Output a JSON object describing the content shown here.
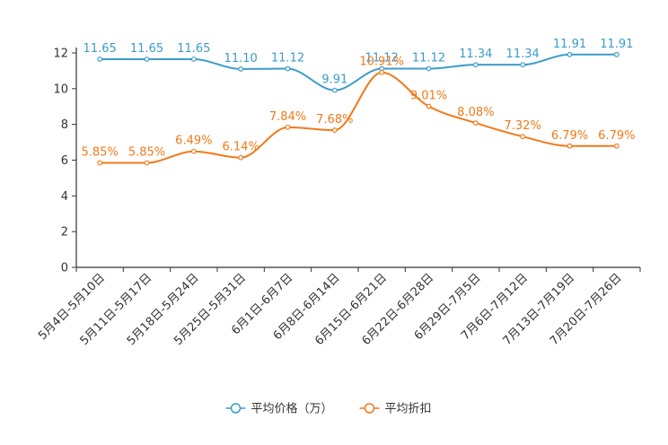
{
  "chart_data": {
    "type": "line",
    "title": "",
    "xlabel": "",
    "ylabel": "",
    "ylim": [
      0,
      12
    ],
    "yticks": [
      0,
      2,
      4,
      6,
      8,
      10,
      12
    ],
    "categories": [
      "5月4日-5月10日",
      "5月11日-5月17日",
      "5月18日-5月24日",
      "5月25日-5月31日",
      "6月1日-6月7日",
      "6月8日-6月14日",
      "6月15日-6月21日",
      "6月22日-6月28日",
      "6月29日-7月5日",
      "7月6日-7月12日",
      "7月13日-7月19日",
      "7月20日-7月26日"
    ],
    "series": [
      {
        "name": "平均价格（万）",
        "color": "#3b9ccb",
        "values": [
          11.65,
          11.65,
          11.65,
          11.1,
          11.12,
          9.91,
          11.12,
          11.12,
          11.34,
          11.34,
          11.91,
          11.91
        ],
        "labels": [
          "11.65",
          "11.65",
          "11.65",
          "11.10",
          "11.12",
          "9.91",
          "11.12",
          "11.12",
          "11.34",
          "11.34",
          "11.91",
          "11.91"
        ]
      },
      {
        "name": "平均折扣",
        "color": "#f07a1a",
        "values": [
          5.85,
          5.85,
          6.49,
          6.14,
          7.84,
          7.68,
          10.91,
          9.01,
          8.08,
          7.32,
          6.79,
          6.79
        ],
        "labels": [
          "5.85%",
          "5.85%",
          "6.49%",
          "6.14%",
          "7.84%",
          "7.68%",
          "10.91%",
          "9.01%",
          "8.08%",
          "7.32%",
          "6.79%",
          "6.79%"
        ]
      }
    ],
    "legend_position": "bottom-center",
    "grid": false
  }
}
